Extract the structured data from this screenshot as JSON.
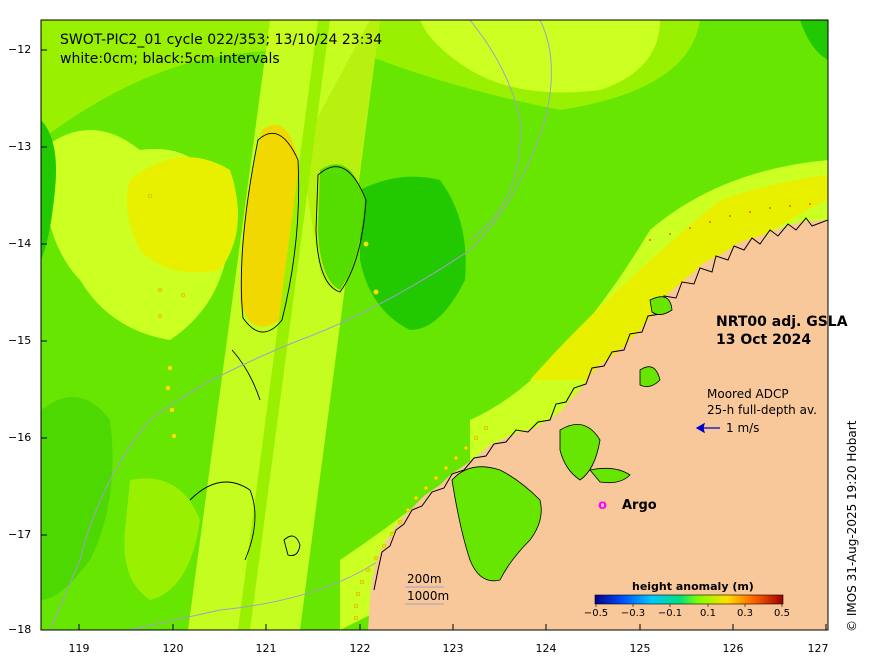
{
  "title_line1": "SWOT-PIC2_01 cycle 022/353; 13/10/24 23:34",
  "title_line2": "white:0cm; black:5cm intervals",
  "product_line1": "NRT00 adj. GSLA",
  "product_line2": "13 Oct 2024",
  "adcp_line1": "Moored ADCP",
  "adcp_line2": "25-h full-depth av.",
  "adcp_scale": "1 m/s",
  "argo_marker": "o",
  "argo_label": "Argo",
  "isobath_200": "200m",
  "isobath_1000": "1000m",
  "colorbar_title": "height anomaly (m)",
  "colorbar_ticks": [
    "−0.5",
    "−0.3",
    "−0.1",
    "0.1",
    "0.3",
    "0.5"
  ],
  "credit": "© IMOS 31-Aug-2025 19:20 Hobart",
  "y_ticks": [
    "−12",
    "−13",
    "−14",
    "−15",
    "−16",
    "−17",
    "−18"
  ],
  "x_ticks": [
    "119",
    "120",
    "121",
    "122",
    "123",
    "124",
    "125",
    "126",
    "127"
  ],
  "colors": {
    "land": "#f9c89a",
    "ocean_base": "#66e600",
    "swath": "#ccff22",
    "argo": "#ff00ff",
    "adcp_arrow": "#0000cc"
  }
}
